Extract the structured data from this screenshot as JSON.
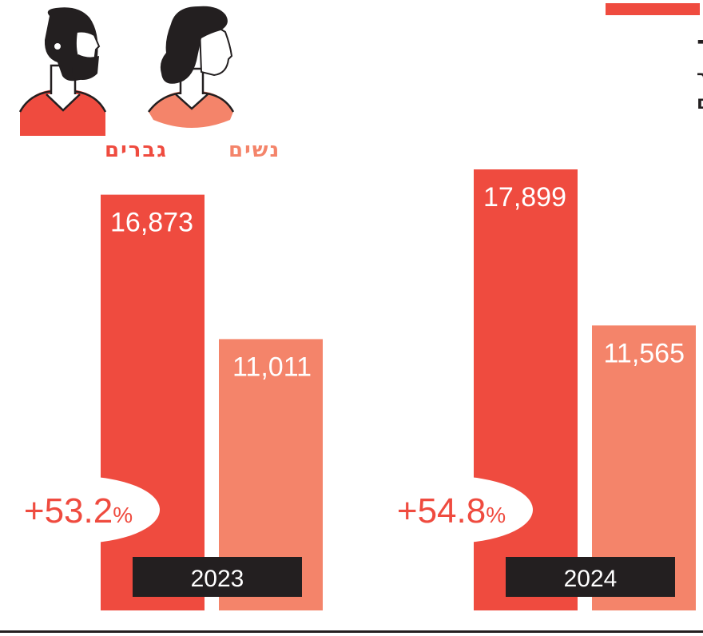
{
  "header": {
    "title": "אין חדש תחת שמש המגדר",
    "subtitle_line1": "נתוני ביטוח לאומי לשכר ממוצע לשכיר",
    "subtitle_line2": "לפי מגדר, בשקלים"
  },
  "legend": {
    "men_label": "גברים",
    "women_label": "נשים"
  },
  "colors": {
    "accent": "#EF4B3F",
    "men": "#EF4B3F",
    "women": "#F4846A",
    "year_box": "#231F20",
    "text": "#231F20"
  },
  "chart_data": {
    "type": "bar",
    "categories": [
      "2023",
      "2024"
    ],
    "series": [
      {
        "name": "גברים",
        "values": [
          16873,
          17899
        ]
      },
      {
        "name": "נשים",
        "values": [
          11011,
          11565
        ]
      }
    ],
    "value_labels": {
      "men": [
        "16,873",
        "17,899"
      ],
      "women": [
        "11,011",
        "11,565"
      ]
    },
    "gap_labels": [
      "+53.2%",
      "+54.8%"
    ],
    "ylim": [
      0,
      17899
    ]
  }
}
